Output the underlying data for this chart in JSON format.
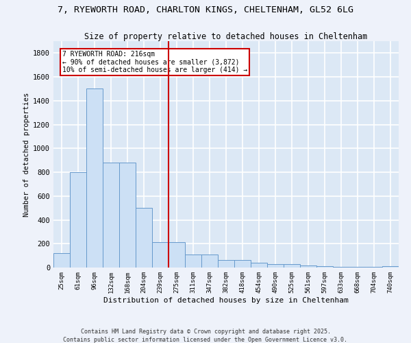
{
  "title_line1": "7, RYEWORTH ROAD, CHARLTON KINGS, CHELTENHAM, GL52 6LG",
  "title_line2": "Size of property relative to detached houses in Cheltenham",
  "xlabel": "Distribution of detached houses by size in Cheltenham",
  "ylabel": "Number of detached properties",
  "bar_labels": [
    "25sqm",
    "61sqm",
    "96sqm",
    "132sqm",
    "168sqm",
    "204sqm",
    "239sqm",
    "275sqm",
    "311sqm",
    "347sqm",
    "382sqm",
    "418sqm",
    "454sqm",
    "490sqm",
    "525sqm",
    "561sqm",
    "597sqm",
    "633sqm",
    "668sqm",
    "704sqm",
    "740sqm"
  ],
  "bar_values": [
    120,
    800,
    1500,
    880,
    880,
    500,
    215,
    215,
    110,
    110,
    65,
    65,
    40,
    30,
    30,
    20,
    10,
    5,
    5,
    5,
    10
  ],
  "bar_color": "#cce0f5",
  "bar_edge_color": "#6699cc",
  "background_color": "#dce8f5",
  "grid_color": "#ffffff",
  "vline_x": 6.5,
  "vline_color": "#cc0000",
  "annotation_text": "7 RYEWORTH ROAD: 216sqm\n← 90% of detached houses are smaller (3,872)\n10% of semi-detached houses are larger (414) →",
  "box_color": "#cc0000",
  "ylim": [
    0,
    1900
  ],
  "yticks": [
    0,
    200,
    400,
    600,
    800,
    1000,
    1200,
    1400,
    1600,
    1800
  ],
  "footer_line1": "Contains HM Land Registry data © Crown copyright and database right 2025.",
  "footer_line2": "Contains public sector information licensed under the Open Government Licence v3.0.",
  "title_fontsize": 9.5,
  "subtitle_fontsize": 8.5,
  "fig_bg_color": "#eef2fa"
}
